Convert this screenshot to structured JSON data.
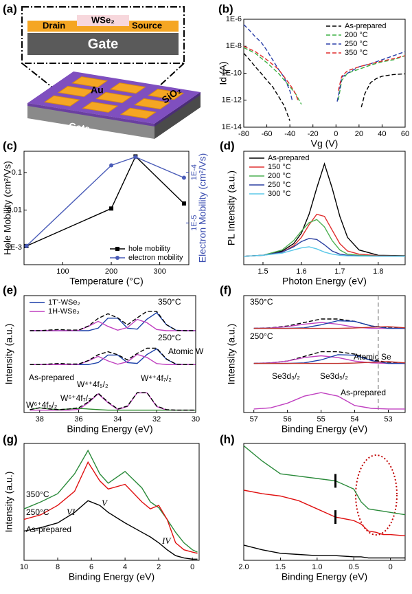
{
  "schematic": {
    "label": "(a)",
    "inset": {
      "drain": "Drain",
      "channel": "WSe₂",
      "source": "Source",
      "gate": "Gate"
    },
    "device": {
      "pads": "Au",
      "dielectric": "SiO₂",
      "gate": "Gate"
    }
  },
  "chart_data": [
    {
      "panel": "(b)",
      "type": "line",
      "xlabel": "Vg (V)",
      "ylabel": "Id (A)",
      "ylog": true,
      "xlim": [
        -80,
        60
      ],
      "xticks": [
        -80,
        -60,
        -40,
        -20,
        0,
        20,
        40,
        60
      ],
      "ylim": [
        1e-14,
        1e-06
      ],
      "yticks": [
        {
          "value": 1e-14,
          "label": "1E-14"
        },
        {
          "value": 1e-12,
          "label": "1E-12"
        },
        {
          "value": 1e-10,
          "label": "1E-10"
        },
        {
          "value": 1e-08,
          "label": "1E-8"
        },
        {
          "value": 1e-06,
          "label": "1E-6"
        }
      ],
      "legend": "upper right",
      "series": [
        {
          "name": "As-prepared",
          "color": "#000000",
          "dash": true,
          "x": [
            -80,
            -75,
            -70,
            -65,
            -60,
            -55,
            -50,
            -45,
            -40,
            0,
            22,
            25,
            30,
            35,
            40,
            50,
            60
          ],
          "values": [
            3e-09,
            1e-09,
            3e-10,
            1e-10,
            3e-11,
            1e-11,
            2e-12,
            4e-13,
            3e-14,
            null,
            3e-13,
            3e-12,
            2e-11,
            4e-11,
            6e-11,
            8e-11,
            9e-11
          ]
        },
        {
          "name": "200 °C",
          "color": "#3cb043",
          "dash": true,
          "x": [
            -80,
            -70,
            -60,
            -50,
            -40,
            -35,
            -30,
            0,
            2,
            5,
            10,
            20,
            30,
            40,
            50,
            60
          ],
          "values": [
            8e-09,
            3e-09,
            6e-10,
            1e-10,
            1e-11,
            3e-12,
            5e-13,
            null,
            1e-12,
            3e-11,
            1e-10,
            2e-10,
            4e-10,
            7e-10,
            1e-09,
            2e-09
          ]
        },
        {
          "name": "250 °C",
          "color": "#2a3fa8",
          "dash": true,
          "x": [
            -80,
            -75,
            -70,
            -65,
            -60,
            -55,
            -50,
            -45,
            -40,
            -38,
            0,
            1,
            3,
            5,
            10,
            20,
            30,
            40,
            50,
            60
          ],
          "values": [
            4e-07,
            1.5e-07,
            5e-08,
            2e-08,
            5e-09,
            1e-09,
            2e-10,
            5e-11,
            5e-12,
            1e-12,
            null,
            8e-13,
            5e-12,
            5e-11,
            1e-10,
            3e-10,
            5e-10,
            1e-09,
            2e-09,
            4e-09
          ]
        },
        {
          "name": "350 °C",
          "color": "#e02a2a",
          "dash": true,
          "x": [
            -80,
            -70,
            -60,
            -50,
            -40,
            -35,
            -33,
            0,
            2,
            5,
            10,
            20,
            30,
            40,
            50,
            60
          ],
          "values": [
            1e-08,
            4e-09,
            1e-09,
            2e-10,
            1.5e-11,
            3e-12,
            1e-12,
            null,
            5e-12,
            6e-11,
            1.5e-10,
            3e-10,
            5e-10,
            8e-10,
            1.2e-09,
            2e-09
          ]
        }
      ]
    },
    {
      "panel": "(c)",
      "type": "line",
      "xlabel": "Temperature (°C)",
      "ylabel": "Hole Mobility (cm²/Vs)",
      "y2label": "Electron Mobility (cm²/Vs)",
      "ylog": true,
      "y2log": true,
      "x": [
        25,
        200,
        250,
        350
      ],
      "xlim": [
        20,
        360
      ],
      "xticks": [
        100,
        200,
        300
      ],
      "ylim": [
        0.00035,
        0.37
      ],
      "yticks": [
        {
          "value": 0.001,
          "label": "1E-3"
        },
        0.01,
        0.1
      ],
      "y2lim": [
        1.5e-06,
        0.00026
      ],
      "y2ticks": [
        {
          "value": 1e-05,
          "label": "1E-5"
        },
        {
          "value": 0.0001,
          "label": "1E-4"
        }
      ],
      "y2color": "#3a4db0",
      "legend": "lower right",
      "series": [
        {
          "name": "hole mobility",
          "color": "#000000",
          "marker": "square",
          "values": [
            0.0011,
            0.011,
            0.27,
            0.015
          ]
        },
        {
          "name": "electron mobility",
          "color": "#4a5cb8",
          "marker": "circle",
          "axis": "y2",
          "values": [
            3.5e-06,
            0.000137,
            0.0002,
            7.8e-05
          ]
        }
      ]
    },
    {
      "panel": "(d)",
      "type": "line",
      "xlabel": "Photon Energy (eV)",
      "ylabel": "PL Intensity (a.u.)",
      "x": [
        1.45,
        1.5,
        1.55,
        1.58,
        1.6,
        1.62,
        1.64,
        1.66,
        1.68,
        1.7,
        1.72,
        1.75,
        1.8,
        1.87
      ],
      "xlim": [
        1.45,
        1.87
      ],
      "xticks": [
        1.5,
        1.6,
        1.7,
        1.8
      ],
      "ylim": [
        -8,
        100
      ],
      "legend": "upper left",
      "series": [
        {
          "name": "As-prepared",
          "color": "#000000",
          "values": [
            0,
            1,
            5,
            12,
            22,
            40,
            65,
            88,
            65,
            38,
            18,
            6,
            1,
            0.5
          ]
        },
        {
          "name": "150 °C",
          "color": "#e03030",
          "values": [
            0,
            1,
            4,
            10,
            18,
            30,
            40,
            38,
            25,
            12,
            5,
            2,
            0.5,
            0.3
          ]
        },
        {
          "name": "200 °C",
          "color": "#4caf50",
          "values": [
            0,
            1,
            6,
            15,
            24,
            32,
            35,
            28,
            15,
            6,
            2,
            1,
            0.3,
            0.2
          ]
        },
        {
          "name": "250 °C",
          "color": "#2a3fa0",
          "values": [
            0,
            1,
            4,
            9,
            14,
            17,
            16,
            11,
            5,
            2,
            1,
            0.4,
            0.1,
            0.1
          ]
        },
        {
          "name": "300 °C",
          "color": "#5bc8e8",
          "values": [
            0,
            1,
            3,
            6,
            8,
            9,
            7,
            4,
            2,
            1,
            0.4,
            0.2,
            0.1,
            0.1
          ]
        }
      ]
    },
    {
      "panel": "(e)",
      "type": "line",
      "xlabel": "Binding Energy (eV)",
      "ylabel": "Intensity (a.u.)",
      "x": [
        38.5,
        38,
        37.5,
        37,
        36.5,
        36,
        35.5,
        35,
        34.5,
        34,
        33.5,
        33,
        32.5,
        32,
        31.5,
        31,
        30.5,
        30
      ],
      "xlim": [
        38.8,
        30
      ],
      "xticks": [
        38,
        36,
        34,
        32,
        30
      ],
      "ylim": [
        0,
        100
      ],
      "legend": "upper left",
      "annotations": [
        "350°C",
        "250°C",
        "Atomic W",
        "As-prepared",
        "W⁴⁺4f₅/₂",
        "W⁴⁺4f₇/₂",
        "W⁶⁺4f₅/₂",
        "W⁶⁺4f₇/₂"
      ],
      "series": [
        {
          "name": "1T'-WSe₂",
          "color": "#1a3fa8",
          "values": [
            70,
            70,
            70,
            70,
            70,
            70,
            70,
            72.2,
            80.7,
            80.7,
            72.2,
            71.3,
            79.8,
            85.4,
            75.1,
            70.3,
            70,
            70
          ]
        },
        {
          "name": "1H-WSe₂",
          "color": "#c040c0",
          "values": [
            70,
            70,
            70,
            70,
            70,
            70.3,
            73.7,
            78,
            73.7,
            70.4,
            72.7,
            79.7,
            76.8,
            71,
            70,
            70,
            70,
            70
          ]
        },
        {
          "color": "#000000",
          "dash": true,
          "values": [
            70,
            70,
            70.5,
            71,
            70.5,
            70.5,
            74,
            80.5,
            84.5,
            81,
            75,
            81,
            86.5,
            86.5,
            75.2,
            70.3,
            70,
            70
          ]
        },
        {
          "color": "#1a3fa8",
          "values": [
            41,
            41,
            41,
            41,
            41,
            41,
            41,
            42.7,
            49.2,
            49.2,
            42.7,
            42,
            49.6,
            54.5,
            45.5,
            41.3,
            41,
            41
          ]
        },
        {
          "color": "#c040c0",
          "values": [
            41,
            41,
            41,
            41,
            41,
            41.2,
            44.2,
            48,
            44.2,
            41.3,
            43.4,
            49.7,
            47.1,
            41.9,
            41,
            41,
            41,
            41
          ]
        },
        {
          "color": "#000000",
          "dash": true,
          "values": [
            41,
            41,
            41.5,
            42,
            41.5,
            41.5,
            44.5,
            49.5,
            52,
            49.5,
            45,
            50.5,
            55,
            55,
            45.8,
            41.3,
            41,
            41
          ]
        },
        {
          "color": "#c040c0",
          "values": [
            2,
            2,
            2,
            2,
            2,
            2.6,
            8.4,
            16,
            8.4,
            2.6,
            5.1,
            16.8,
            16.8,
            5.1,
            2.1,
            2,
            2,
            2
          ]
        },
        {
          "color": "#2e8b2e",
          "values": [
            2.5,
            4,
            3,
            2.5,
            3,
            3.5,
            3,
            2.5,
            2,
            2,
            2,
            2,
            2,
            2,
            2,
            2,
            2,
            2
          ]
        },
        {
          "color": "#000000",
          "dash": true,
          "values": [
            2.5,
            4,
            3,
            2.5,
            3,
            4,
            9,
            16.5,
            9,
            3,
            5.5,
            17,
            17,
            5.5,
            2.5,
            2,
            2,
            2
          ]
        }
      ]
    },
    {
      "panel": "(f)",
      "type": "line",
      "xlabel": "Binding Energy (eV)",
      "ylabel": "Intensity (a.u.)",
      "x": [
        57,
        56.5,
        56,
        55.5,
        55,
        54.5,
        54,
        53.5,
        53,
        52.5
      ],
      "xlim": [
        57.3,
        52.5
      ],
      "xticks": [
        57,
        56,
        55,
        54,
        53
      ],
      "ylim": [
        0,
        100
      ],
      "vline": 53.3,
      "annotations": [
        "350°C",
        "250°C",
        "Atomic Se",
        "Se3d₃/₂",
        "Se3d₅/₂",
        "As-prepared"
      ],
      "series": [
        {
          "color": "#000000",
          "dash": true,
          "values": [
            72,
            72.5,
            74,
            77,
            80,
            80,
            78,
            74,
            72.5,
            72
          ]
        },
        {
          "color": "#c040c0",
          "values": [
            72,
            72.3,
            73.5,
            75.5,
            77,
            75.5,
            73,
            72,
            72,
            72
          ]
        },
        {
          "color": "#1a3fa8",
          "values": [
            72,
            72,
            72,
            72.5,
            75,
            78.5,
            78,
            74,
            72,
            72
          ]
        },
        {
          "color": "#c0302a",
          "values": [
            72,
            72,
            72,
            72,
            72,
            72,
            72.3,
            73,
            73.5,
            72.5
          ]
        },
        {
          "color": "#000000",
          "dash": true,
          "values": [
            42,
            42.5,
            44,
            48,
            52,
            52,
            50,
            45,
            43,
            42
          ]
        },
        {
          "color": "#c040c0",
          "values": [
            42,
            42.5,
            44,
            47,
            48.5,
            47,
            44,
            42.5,
            42,
            42
          ]
        },
        {
          "color": "#1a3fa8",
          "values": [
            42,
            42,
            42,
            42.5,
            45,
            49.5,
            49,
            44.5,
            42,
            42
          ]
        },
        {
          "color": "#c0302a",
          "values": [
            42,
            42,
            42,
            42,
            42,
            42,
            42.3,
            43,
            43.5,
            42.5
          ]
        },
        {
          "color": "#c040c0",
          "values": [
            3,
            4,
            8,
            14,
            17,
            14,
            6,
            3.5,
            3,
            3
          ]
        }
      ]
    },
    {
      "panel": "(g)",
      "type": "line",
      "xlabel": "Binding Energy (eV)",
      "ylabel": "Intensity (a.u.)",
      "x": [
        10,
        9,
        8,
        7,
        6.2,
        5.5,
        5,
        4,
        3,
        2.5,
        2,
        1.5,
        1,
        0.5,
        0,
        -0.3
      ],
      "xlim": [
        10,
        -0.4
      ],
      "xticks": [
        10,
        8,
        6,
        4,
        2,
        0
      ],
      "ylim": [
        0,
        100
      ],
      "annotations": [
        "350°C",
        "250°C",
        "As-prepared",
        "VI",
        "V",
        "IV"
      ],
      "series": [
        {
          "color": "#2a8a3a",
          "values": [
            44,
            50,
            57,
            74,
            94,
            74,
            66,
            76,
            62,
            50,
            45,
            35,
            24,
            15,
            9,
            7
          ]
        },
        {
          "color": "#e01010",
          "values": [
            35,
            39,
            47,
            59,
            84,
            68,
            61,
            65,
            50,
            44,
            47,
            35,
            15,
            9,
            7,
            6
          ]
        },
        {
          "color": "#000000",
          "values": [
            25,
            28,
            32,
            41,
            51,
            47,
            41,
            32,
            24,
            20,
            15,
            9,
            4,
            2,
            1,
            1
          ]
        }
      ]
    },
    {
      "panel": "(h)",
      "type": "line",
      "xlabel": "Binding Energy (eV)",
      "x": [
        2,
        1.75,
        1.5,
        1.25,
        1,
        0.75,
        0.5,
        0.4,
        0.3,
        0.2,
        0.1,
        0,
        -0.2
      ],
      "xlim": [
        2,
        -0.2
      ],
      "xticks": [
        {
          "value": 2,
          "label": "2.0"
        },
        1.5,
        {
          "value": 1,
          "label": "1.0"
        },
        0.5,
        0
      ],
      "ylim": [
        0,
        100
      ],
      "series": [
        {
          "color": "#2a8a3a",
          "values": [
            98,
            85,
            74,
            72,
            70,
            68,
            61,
            50,
            44,
            43,
            42,
            41,
            39
          ]
        },
        {
          "color": "#e01010",
          "values": [
            60,
            57,
            55,
            51,
            44,
            37,
            34,
            31,
            25,
            24,
            22,
            22,
            21
          ]
        },
        {
          "color": "#000000",
          "values": [
            13,
            9,
            6,
            5,
            4,
            4,
            3,
            3,
            2,
            2,
            2,
            2,
            2
          ]
        }
      ]
    }
  ]
}
